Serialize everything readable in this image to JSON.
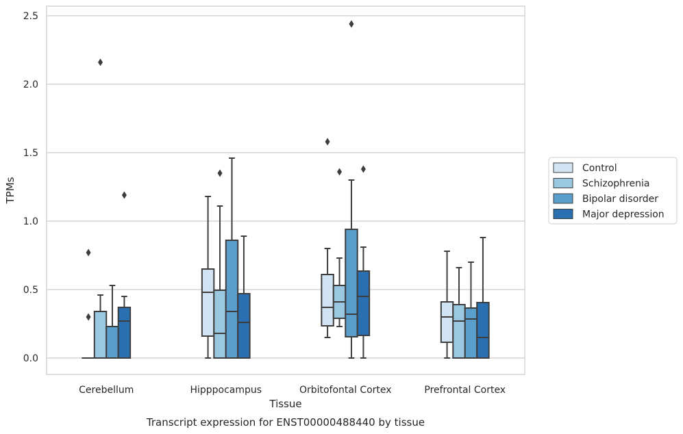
{
  "chart_data": {
    "type": "box",
    "xlabel": "Tissue",
    "ylabel": "TPMs",
    "caption": "Transcript expression for ENST00000488440 by tissue",
    "ylim": [
      -0.12,
      2.57
    ],
    "yticks": [
      "0.0",
      "0.5",
      "1.0",
      "1.5",
      "2.0",
      "2.5"
    ],
    "grid": "horizontal",
    "legend_position": "right",
    "categories": [
      "Cerebellum",
      "Hipppocampus",
      "Orbitofontal Cortex",
      "Prefrontal Cortex"
    ],
    "series": [
      {
        "name": "Control",
        "color": "#d2e3f3",
        "boxes": [
          {
            "whislo": 0,
            "q1": 0,
            "med": 0,
            "q3": 0,
            "whishi": 0,
            "fliers": [
              0.3,
              0.77
            ]
          },
          {
            "whislo": 0,
            "q1": 0.16,
            "med": 0.48,
            "q3": 0.65,
            "whishi": 1.18,
            "fliers": []
          },
          {
            "whislo": 0.15,
            "q1": 0.235,
            "med": 0.37,
            "q3": 0.61,
            "whishi": 0.8,
            "fliers": [
              1.58
            ]
          },
          {
            "whislo": 0,
            "q1": 0.115,
            "med": 0.3,
            "q3": 0.41,
            "whishi": 0.78,
            "fliers": []
          }
        ]
      },
      {
        "name": "Schizophrenia",
        "color": "#9ac8e0",
        "boxes": [
          {
            "whislo": 0,
            "q1": 0,
            "med": 0,
            "q3": 0.34,
            "whishi": 0.46,
            "fliers": [
              2.16
            ]
          },
          {
            "whislo": 0,
            "q1": 0,
            "med": 0.18,
            "q3": 0.495,
            "whishi": 1.11,
            "fliers": [
              1.35
            ]
          },
          {
            "whislo": 0.23,
            "q1": 0.29,
            "med": 0.41,
            "q3": 0.53,
            "whishi": 0.73,
            "fliers": [
              1.36
            ]
          },
          {
            "whislo": 0,
            "q1": 0,
            "med": 0.27,
            "q3": 0.39,
            "whishi": 0.66,
            "fliers": []
          }
        ]
      },
      {
        "name": "Bipolar disorder",
        "color": "#5a9fcb",
        "boxes": [
          {
            "whislo": 0,
            "q1": 0,
            "med": 0,
            "q3": 0.23,
            "whishi": 0.53,
            "fliers": []
          },
          {
            "whislo": 0,
            "q1": 0,
            "med": 0.34,
            "q3": 0.86,
            "whishi": 1.46,
            "fliers": []
          },
          {
            "whislo": 0,
            "q1": 0.155,
            "med": 0.32,
            "q3": 0.94,
            "whishi": 1.3,
            "fliers": [
              2.44
            ]
          },
          {
            "whislo": 0,
            "q1": 0,
            "med": 0.285,
            "q3": 0.365,
            "whishi": 0.7,
            "fliers": []
          }
        ]
      },
      {
        "name": "Major depression",
        "color": "#2a6fb0",
        "boxes": [
          {
            "whislo": 0,
            "q1": 0,
            "med": 0.27,
            "q3": 0.37,
            "whishi": 0.45,
            "fliers": [
              1.19
            ]
          },
          {
            "whislo": 0,
            "q1": 0,
            "med": 0.26,
            "q3": 0.47,
            "whishi": 0.89,
            "fliers": []
          },
          {
            "whislo": 0,
            "q1": 0.165,
            "med": 0.45,
            "q3": 0.635,
            "whishi": 0.81,
            "fliers": [
              1.38
            ]
          },
          {
            "whislo": 0,
            "q1": 0,
            "med": 0.15,
            "q3": 0.405,
            "whishi": 0.88,
            "fliers": []
          }
        ]
      }
    ]
  }
}
